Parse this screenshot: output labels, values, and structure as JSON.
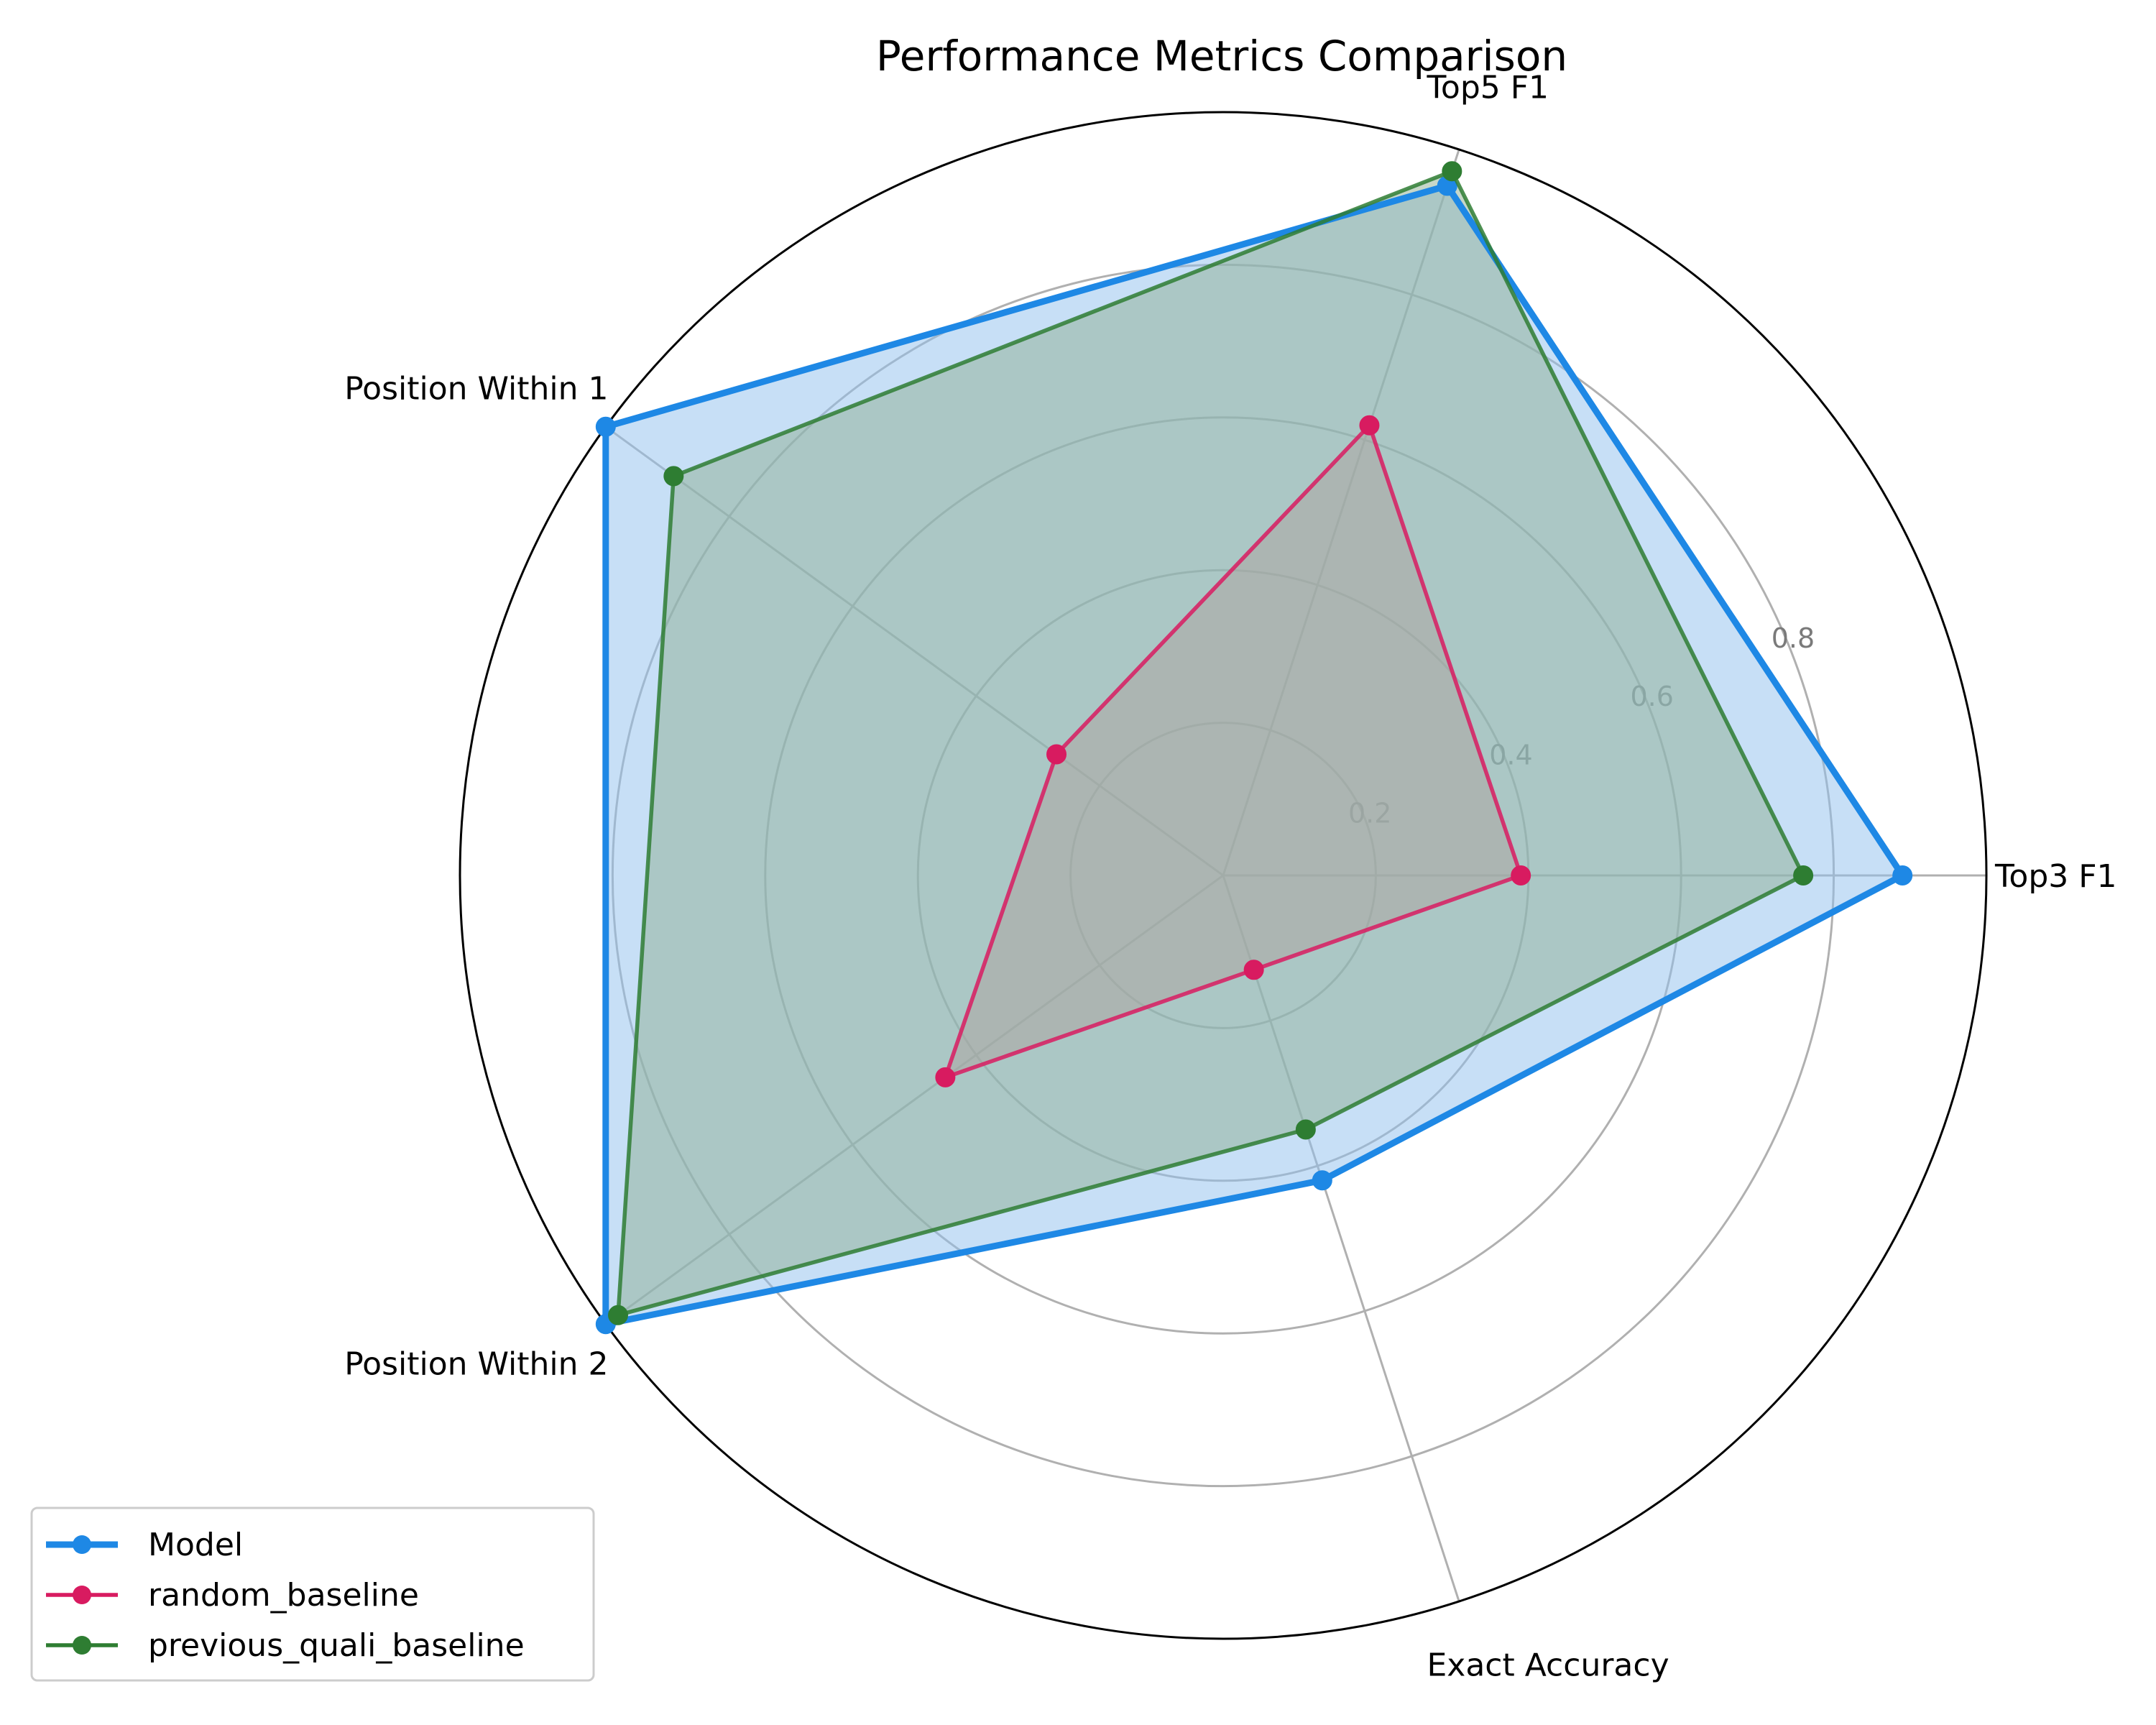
{
  "chart_data": {
    "type": "radar",
    "title": "Performance Metrics Comparison",
    "axes": [
      "Top3 F1",
      "Top5 F1",
      "Position Within 1",
      "Position Within 2",
      "Exact Accuracy"
    ],
    "angles_deg": [
      0,
      72,
      144,
      216,
      288
    ],
    "rlim": [
      0,
      1.0
    ],
    "rticks": [
      0.2,
      0.4,
      0.6,
      0.8
    ],
    "rtick_labels": [
      "0.2",
      "0.4",
      "0.6",
      "0.8"
    ],
    "grid": true,
    "legend_position": "lower-left",
    "series": [
      {
        "name": "Model",
        "values": [
          0.89,
          0.95,
          1.0,
          1.0,
          0.42
        ],
        "color": "#1E88E5",
        "fill": true,
        "fill_color": "#90BFEE"
      },
      {
        "name": "random_baseline",
        "values": [
          0.39,
          0.62,
          0.27,
          0.45,
          0.13
        ],
        "color": "#D81B60",
        "fill": true,
        "fill_color": "#C998AB"
      },
      {
        "name": "previous_quali_baseline",
        "values": [
          0.76,
          0.97,
          0.89,
          0.98,
          0.35
        ],
        "color": "#2E7D32",
        "fill": true,
        "fill_color": "#8FB093"
      }
    ]
  }
}
